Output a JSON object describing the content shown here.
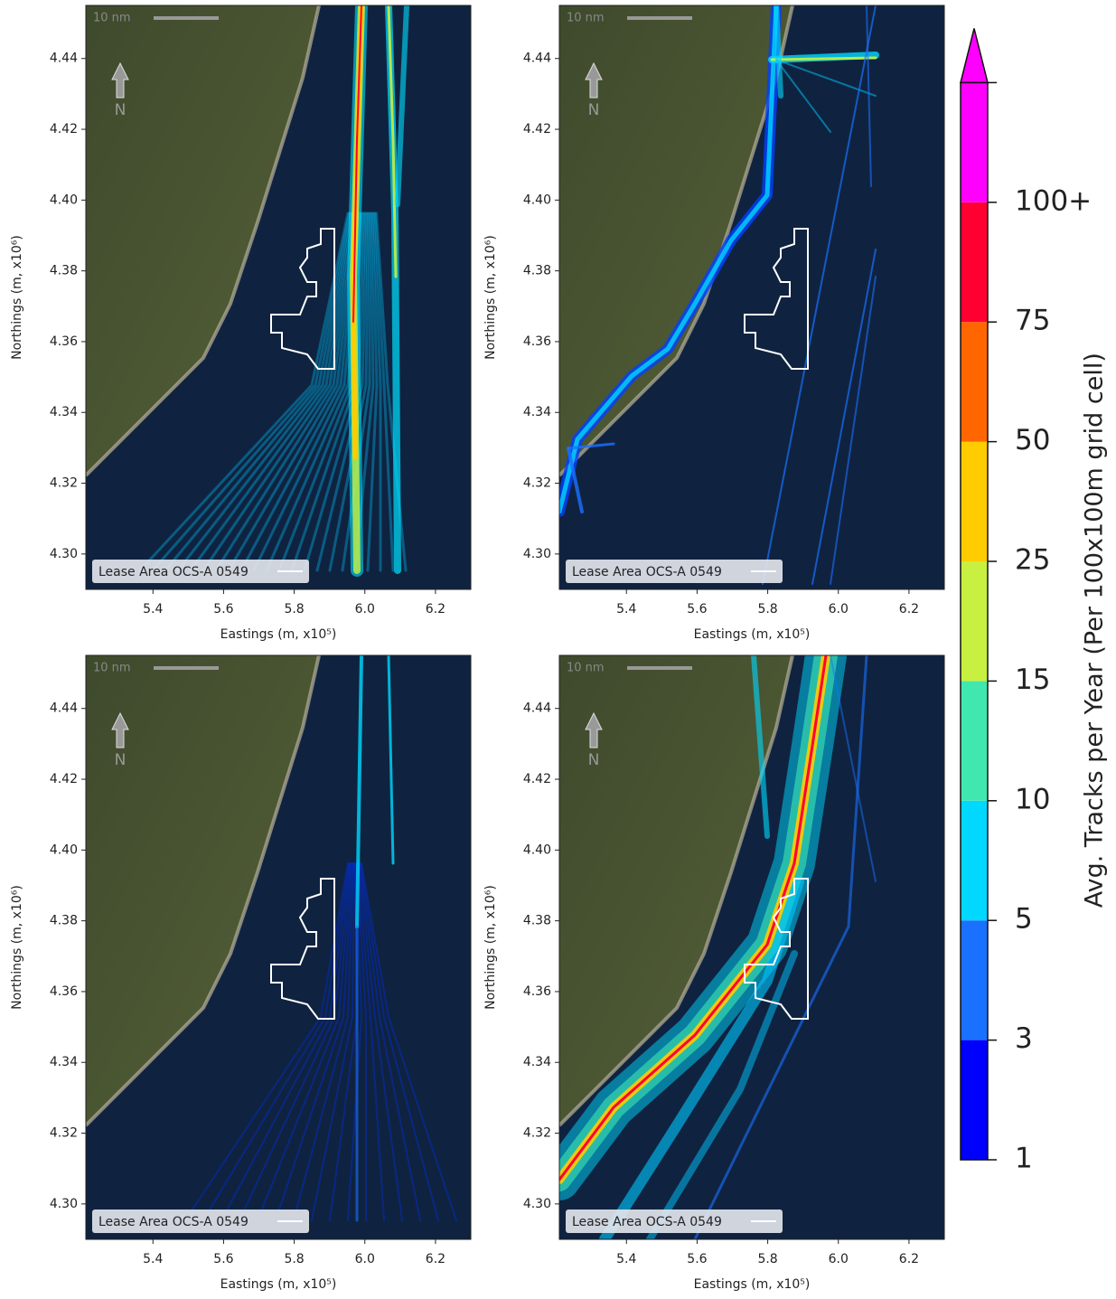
{
  "panels": [
    {
      "xlabel": "Eastings (m, x10⁵)",
      "ylabel": "Northings (m, x10⁶)",
      "xlim": [
        5.21,
        6.3
      ],
      "ylim": [
        4.29,
        4.455
      ],
      "xticks": [
        5.4,
        5.6,
        5.8,
        {
          "value": 6,
          "label": "6.0"
        },
        6.2
      ],
      "yticks": [
        {
          "value": 4.3,
          "label": "4.30"
        },
        4.32,
        4.34,
        4.36,
        4.38,
        {
          "value": 4.4,
          "label": "4.40"
        },
        4.42,
        4.44
      ],
      "legend": "Lease Area OCS-A 0549",
      "scale_bar": "10 nm",
      "north": "N"
    },
    {
      "xlabel": "Eastings (m, x10⁵)",
      "ylabel": "Northings (m, x10⁶)",
      "xlim": [
        5.21,
        6.3
      ],
      "ylim": [
        4.29,
        4.455
      ],
      "xticks": [
        5.4,
        5.6,
        5.8,
        {
          "value": 6,
          "label": "6.0"
        },
        6.2
      ],
      "yticks": [
        {
          "value": 4.3,
          "label": "4.30"
        },
        4.32,
        4.34,
        4.36,
        4.38,
        {
          "value": 4.4,
          "label": "4.40"
        },
        4.42,
        4.44
      ],
      "legend": "Lease Area OCS-A 0549",
      "scale_bar": "10 nm",
      "north": "N"
    },
    {
      "xlabel": "Eastings (m, x10⁵)",
      "ylabel": "Northings (m, x10⁶)",
      "xlim": [
        5.21,
        6.3
      ],
      "ylim": [
        4.29,
        4.455
      ],
      "xticks": [
        5.4,
        5.6,
        5.8,
        {
          "value": 6,
          "label": "6.0"
        },
        6.2
      ],
      "yticks": [
        {
          "value": 4.3,
          "label": "4.30"
        },
        4.32,
        4.34,
        4.36,
        4.38,
        {
          "value": 4.4,
          "label": "4.40"
        },
        4.42,
        4.44
      ],
      "legend": "Lease Area OCS-A 0549",
      "scale_bar": "10 nm",
      "north": "N"
    },
    {
      "xlabel": "Eastings (m, x10⁵)",
      "ylabel": "Northings (m, x10⁶)",
      "xlim": [
        5.21,
        6.3
      ],
      "ylim": [
        4.29,
        4.455
      ],
      "xticks": [
        5.4,
        5.6,
        5.8,
        {
          "value": 6,
          "label": "6.0"
        },
        6.2
      ],
      "yticks": [
        {
          "value": 4.3,
          "label": "4.30"
        },
        4.32,
        4.34,
        4.36,
        4.38,
        {
          "value": 4.4,
          "label": "4.40"
        },
        4.42,
        4.44
      ],
      "legend": "Lease Area OCS-A 0549",
      "scale_bar": "10 nm",
      "north": "N"
    }
  ],
  "colorbar": {
    "label": "Avg. Tracks per Year (Per 100x100m grid cell)",
    "ticks": [
      1,
      3,
      5,
      10,
      15,
      25,
      50,
      75,
      {
        "value": 100,
        "label": "100+"
      }
    ],
    "colors": [
      "#0000ff",
      "#1a70ff",
      "#00d8ff",
      "#40e8b0",
      "#c8f040",
      "#ffcc00",
      "#ff6600",
      "#ff0030",
      "#ff00ff"
    ]
  }
}
